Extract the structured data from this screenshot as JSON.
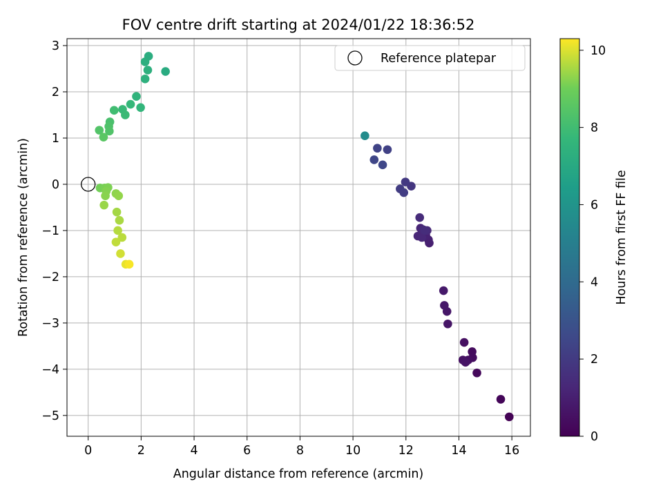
{
  "chart_data": {
    "type": "scatter",
    "title": "FOV centre drift starting at 2024/01/22 18:36:52",
    "xlabel": "Angular distance from reference (arcmin)",
    "ylabel": "Rotation from reference (arcmin)",
    "xlim": [
      -0.8,
      16.7
    ],
    "ylim": [
      -5.45,
      3.15
    ],
    "xticks": [
      "0",
      "2",
      "4",
      "6",
      "8",
      "10",
      "12",
      "14",
      "16"
    ],
    "yticks": [
      "−5",
      "−4",
      "−3",
      "−2",
      "−1",
      "0",
      "1",
      "2",
      "3"
    ],
    "grid": true,
    "legend": {
      "position": "top-right",
      "label": "Reference platepar"
    },
    "reference_point": {
      "x": 0,
      "y": 0
    },
    "colorbar": {
      "label": "Hours from first FF file",
      "min": 0,
      "max": 10.3,
      "ticks": [
        "0",
        "2",
        "4",
        "6",
        "8",
        "10"
      ],
      "colormap": "viridis"
    },
    "points": [
      {
        "x": 15.9,
        "y": -5.03,
        "t": 0.05
      },
      {
        "x": 15.58,
        "y": -4.65,
        "t": 0.15
      },
      {
        "x": 14.68,
        "y": -4.08,
        "t": 0.25
      },
      {
        "x": 14.5,
        "y": -3.62,
        "t": 0.35
      },
      {
        "x": 14.52,
        "y": -3.75,
        "t": 0.4
      },
      {
        "x": 14.35,
        "y": -3.8,
        "t": 0.45
      },
      {
        "x": 14.2,
        "y": -3.42,
        "t": 0.5
      },
      {
        "x": 14.15,
        "y": -3.8,
        "t": 0.55
      },
      {
        "x": 14.25,
        "y": -3.85,
        "t": 0.6
      },
      {
        "x": 13.58,
        "y": -3.02,
        "t": 0.65
      },
      {
        "x": 13.55,
        "y": -2.75,
        "t": 0.7
      },
      {
        "x": 13.45,
        "y": -2.62,
        "t": 0.75
      },
      {
        "x": 13.42,
        "y": -2.3,
        "t": 0.8
      },
      {
        "x": 12.88,
        "y": -1.27,
        "t": 1.0
      },
      {
        "x": 12.85,
        "y": -1.2,
        "t": 1.05
      },
      {
        "x": 12.75,
        "y": -1.1,
        "t": 1.1
      },
      {
        "x": 12.6,
        "y": -1.05,
        "t": 1.15
      },
      {
        "x": 12.55,
        "y": -0.95,
        "t": 1.2
      },
      {
        "x": 12.45,
        "y": -1.12,
        "t": 1.25
      },
      {
        "x": 12.6,
        "y": -1.15,
        "t": 1.3
      },
      {
        "x": 12.8,
        "y": -1.0,
        "t": 1.35
      },
      {
        "x": 12.65,
        "y": -0.98,
        "t": 1.4
      },
      {
        "x": 12.52,
        "y": -0.72,
        "t": 1.45
      },
      {
        "x": 12.72,
        "y": -1.0,
        "t": 1.5
      },
      {
        "x": 12.2,
        "y": -0.04,
        "t": 1.85
      },
      {
        "x": 11.98,
        "y": 0.05,
        "t": 1.95
      },
      {
        "x": 11.78,
        "y": -0.1,
        "t": 2.05
      },
      {
        "x": 11.92,
        "y": -0.18,
        "t": 2.1
      },
      {
        "x": 11.3,
        "y": 0.75,
        "t": 2.25
      },
      {
        "x": 10.92,
        "y": 0.78,
        "t": 2.35
      },
      {
        "x": 10.8,
        "y": 0.53,
        "t": 2.45
      },
      {
        "x": 11.12,
        "y": 0.42,
        "t": 2.5
      },
      {
        "x": 10.45,
        "y": 1.05,
        "t": 5.6
      },
      {
        "x": 2.92,
        "y": 2.44,
        "t": 7.1
      },
      {
        "x": 2.28,
        "y": 2.77,
        "t": 7.2
      },
      {
        "x": 2.15,
        "y": 2.65,
        "t": 7.25
      },
      {
        "x": 2.25,
        "y": 2.47,
        "t": 7.3
      },
      {
        "x": 2.15,
        "y": 2.28,
        "t": 7.35
      },
      {
        "x": 1.82,
        "y": 1.9,
        "t": 7.5
      },
      {
        "x": 1.98,
        "y": 1.66,
        "t": 7.6
      },
      {
        "x": 1.6,
        "y": 1.73,
        "t": 7.7
      },
      {
        "x": 1.3,
        "y": 1.62,
        "t": 7.8
      },
      {
        "x": 1.4,
        "y": 1.5,
        "t": 7.85
      },
      {
        "x": 0.98,
        "y": 1.6,
        "t": 8.0
      },
      {
        "x": 0.82,
        "y": 1.35,
        "t": 8.2
      },
      {
        "x": 0.78,
        "y": 1.25,
        "t": 8.3
      },
      {
        "x": 0.8,
        "y": 1.15,
        "t": 8.35
      },
      {
        "x": 0.42,
        "y": 1.17,
        "t": 8.4
      },
      {
        "x": 0.58,
        "y": 1.02,
        "t": 8.55
      },
      {
        "x": 0.45,
        "y": -0.08,
        "t": 9.05
      },
      {
        "x": 0.62,
        "y": -0.08,
        "t": 9.1
      },
      {
        "x": 0.75,
        "y": -0.07,
        "t": 9.15
      },
      {
        "x": 0.68,
        "y": -0.15,
        "t": 9.2
      },
      {
        "x": 0.65,
        "y": -0.25,
        "t": 9.25
      },
      {
        "x": 1.05,
        "y": -0.2,
        "t": 9.3
      },
      {
        "x": 1.15,
        "y": -0.25,
        "t": 9.35
      },
      {
        "x": 0.6,
        "y": -0.45,
        "t": 9.4
      },
      {
        "x": 1.08,
        "y": -0.6,
        "t": 9.5
      },
      {
        "x": 1.18,
        "y": -0.78,
        "t": 9.55
      },
      {
        "x": 1.12,
        "y": -1.0,
        "t": 9.65
      },
      {
        "x": 1.28,
        "y": -1.15,
        "t": 9.7
      },
      {
        "x": 1.05,
        "y": -1.25,
        "t": 9.75
      },
      {
        "x": 1.22,
        "y": -1.5,
        "t": 9.9
      },
      {
        "x": 1.42,
        "y": -1.73,
        "t": 10.1
      },
      {
        "x": 1.55,
        "y": -1.73,
        "t": 10.25
      }
    ]
  }
}
